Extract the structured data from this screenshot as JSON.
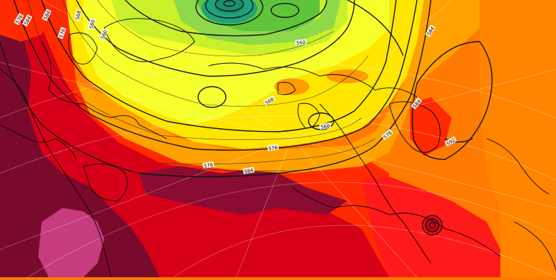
{
  "map": {
    "colors": {
      "deep_maroon": "#7a0a2c",
      "dark_red": "#c8001e",
      "red": "#ff1a1a",
      "orange_red": "#ff4a00",
      "orange": "#ff7a00",
      "light_orange": "#ff9a00",
      "yellow": "#ffe600",
      "light_yellow": "#f6ff2a",
      "yellow_green": "#c9f02a",
      "green": "#5fc43a",
      "teal": "#1fa37a",
      "pink": "#c63c7e",
      "contour": "#111111",
      "coastline": "#000000",
      "gridline": "#ffffff"
    },
    "contour_labels": [
      {
        "text": "576"
      },
      {
        "text": "576"
      },
      {
        "text": "568"
      },
      {
        "text": "560"
      },
      {
        "text": "560"
      },
      {
        "text": "568"
      },
      {
        "text": "576"
      },
      {
        "text": "584"
      },
      {
        "text": "584"
      },
      {
        "text": "576"
      },
      {
        "text": "584"
      },
      {
        "text": "592"
      },
      {
        "text": "584"
      },
      {
        "text": "584"
      },
      {
        "text": "568"
      },
      {
        "text": "560"
      },
      {
        "text": "576"
      }
    ]
  }
}
